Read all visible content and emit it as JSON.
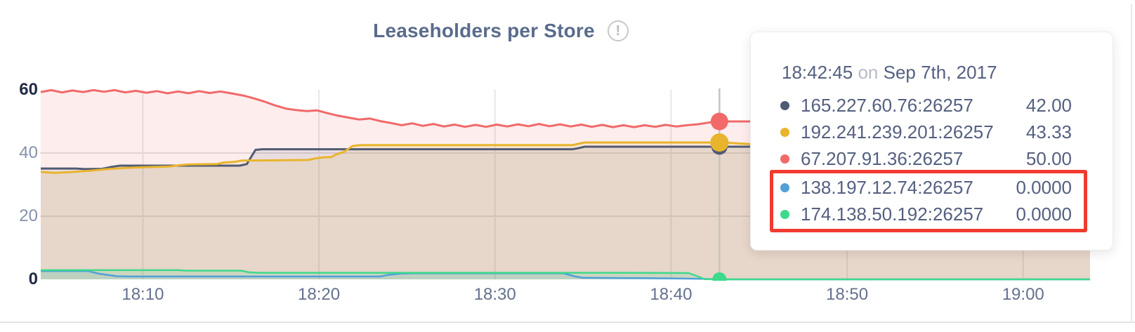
{
  "icons": {
    "info": "!"
  },
  "colors": {
    "title": "#5a6b8c",
    "highlight_box": "#f13b30",
    "hover_line": "#c4c4c4",
    "grid_horizontal": "#e2e2e2",
    "grid_vertical": "#e7e7e7",
    "tooltip_text": "#556080",
    "tooltip_conjunction_text": "#b7bcc5"
  },
  "chart_data": {
    "type": "area",
    "title": "Leaseholders per Store",
    "x_axis": {
      "unit": "minutes after 18:00 on Sep 7th, 2017",
      "range": [
        4.16,
        63.8
      ],
      "ticks": [
        {
          "m": 10,
          "label": "18:10"
        },
        {
          "m": 20,
          "label": "18:20"
        },
        {
          "m": 30,
          "label": "18:30"
        },
        {
          "m": 40,
          "label": "18:40"
        },
        {
          "m": 50,
          "label": "18:50"
        },
        {
          "m": 60,
          "label": "19:00"
        }
      ]
    },
    "y_axis": {
      "range": [
        0,
        60
      ],
      "ticks": [
        {
          "v": 0,
          "label": "0",
          "strong": true,
          "grid": false
        },
        {
          "v": 20,
          "label": "20",
          "strong": false,
          "grid": true
        },
        {
          "v": 40,
          "label": "40",
          "strong": false,
          "grid": true
        },
        {
          "v": 60,
          "label": "60",
          "strong": true,
          "grid": false
        }
      ]
    },
    "series": [
      {
        "name": "165.227.60.76:26257",
        "color": "#505b74",
        "points": [
          [
            4.2,
            35.1
          ],
          [
            6.2,
            35.1
          ],
          [
            6.7,
            34.9
          ],
          [
            7.7,
            35.0
          ],
          [
            8.2,
            35.6
          ],
          [
            8.7,
            36.0
          ],
          [
            15.5,
            36.0
          ],
          [
            15.9,
            36.5
          ],
          [
            16.4,
            41.0
          ],
          [
            16.8,
            41.2
          ],
          [
            34.4,
            41.2
          ],
          [
            34.7,
            41.5
          ],
          [
            35.1,
            42.0
          ],
          [
            42.75,
            42.0
          ],
          [
            63.8,
            42.0
          ]
        ]
      },
      {
        "name": "192.241.239.201:26257",
        "color": "#e8b42d",
        "points": [
          [
            4.2,
            34.0
          ],
          [
            5.0,
            33.7
          ],
          [
            6.0,
            34.0
          ],
          [
            7.0,
            34.4
          ],
          [
            8.0,
            34.9
          ],
          [
            9.0,
            35.3
          ],
          [
            10.0,
            35.5
          ],
          [
            11.5,
            35.7
          ],
          [
            12.0,
            36.1
          ],
          [
            12.6,
            36.4
          ],
          [
            14.2,
            36.5
          ],
          [
            14.6,
            37.0
          ],
          [
            15.2,
            37.2
          ],
          [
            15.6,
            37.6
          ],
          [
            18.0,
            37.7
          ],
          [
            19.4,
            37.8
          ],
          [
            19.8,
            38.3
          ],
          [
            20.2,
            38.6
          ],
          [
            20.7,
            38.7
          ],
          [
            21.0,
            39.6
          ],
          [
            21.4,
            40.3
          ],
          [
            21.9,
            42.2
          ],
          [
            22.3,
            42.5
          ],
          [
            34.4,
            42.5
          ],
          [
            34.8,
            43.0
          ],
          [
            35.1,
            43.33
          ],
          [
            42.75,
            43.33
          ],
          [
            43.4,
            43.2
          ],
          [
            44.5,
            42.8
          ],
          [
            45.8,
            42.65
          ],
          [
            63.8,
            42.65
          ]
        ]
      },
      {
        "name": "67.207.91.36:26257",
        "color": "#f16969",
        "points": [
          [
            4.2,
            59.3
          ],
          [
            4.8,
            59.9
          ],
          [
            5.4,
            59.2
          ],
          [
            6.0,
            59.8
          ],
          [
            6.6,
            59.3
          ],
          [
            7.2,
            59.9
          ],
          [
            7.8,
            59.4
          ],
          [
            8.4,
            59.9
          ],
          [
            9.0,
            59.2
          ],
          [
            9.6,
            59.7
          ],
          [
            10.2,
            59.1
          ],
          [
            10.8,
            59.6
          ],
          [
            11.4,
            58.9
          ],
          [
            12.0,
            59.5
          ],
          [
            12.6,
            58.9
          ],
          [
            13.2,
            59.6
          ],
          [
            13.8,
            59.0
          ],
          [
            14.4,
            59.5
          ],
          [
            15.0,
            58.9
          ],
          [
            15.7,
            58.2
          ],
          [
            16.3,
            57.3
          ],
          [
            16.9,
            56.3
          ],
          [
            17.5,
            55.1
          ],
          [
            18.1,
            54.1
          ],
          [
            18.7,
            53.6
          ],
          [
            19.3,
            53.3
          ],
          [
            19.9,
            53.5
          ],
          [
            20.5,
            52.6
          ],
          [
            21.1,
            51.8
          ],
          [
            21.7,
            51.2
          ],
          [
            22.3,
            50.6
          ],
          [
            22.9,
            50.9
          ],
          [
            23.5,
            50.1
          ],
          [
            24.1,
            49.5
          ],
          [
            24.7,
            48.8
          ],
          [
            25.3,
            49.4
          ],
          [
            25.9,
            48.6
          ],
          [
            26.5,
            49.2
          ],
          [
            27.1,
            48.4
          ],
          [
            27.7,
            49.0
          ],
          [
            28.3,
            48.3
          ],
          [
            28.9,
            48.9
          ],
          [
            29.5,
            48.3
          ],
          [
            30.1,
            49.0
          ],
          [
            30.7,
            48.4
          ],
          [
            31.3,
            49.1
          ],
          [
            31.9,
            48.5
          ],
          [
            32.5,
            49.2
          ],
          [
            33.1,
            48.5
          ],
          [
            33.7,
            49.1
          ],
          [
            34.3,
            48.4
          ],
          [
            34.9,
            49.0
          ],
          [
            35.5,
            48.3
          ],
          [
            36.1,
            48.9
          ],
          [
            36.7,
            48.2
          ],
          [
            37.3,
            48.8
          ],
          [
            37.9,
            48.2
          ],
          [
            38.5,
            48.8
          ],
          [
            39.1,
            48.3
          ],
          [
            39.7,
            48.9
          ],
          [
            40.3,
            48.4
          ],
          [
            40.9,
            48.8
          ],
          [
            41.5,
            49.1
          ],
          [
            42.1,
            49.6
          ],
          [
            42.5,
            50.0
          ],
          [
            44.0,
            50.0
          ],
          [
            48.0,
            50.0
          ],
          [
            54.0,
            50.0
          ],
          [
            63.8,
            50.0
          ]
        ]
      },
      {
        "name": "138.197.12.74:26257",
        "color": "#51a0d9",
        "points": [
          [
            4.2,
            2.6
          ],
          [
            6.9,
            2.6
          ],
          [
            7.5,
            1.8
          ],
          [
            8.5,
            1.0
          ],
          [
            9.2,
            0.9
          ],
          [
            23.5,
            0.9
          ],
          [
            23.9,
            1.4
          ],
          [
            24.6,
            1.8
          ],
          [
            25.4,
            1.9
          ],
          [
            33.9,
            1.9
          ],
          [
            34.5,
            1.0
          ],
          [
            35.0,
            0.5
          ],
          [
            38.5,
            0.4
          ],
          [
            41.5,
            0.2
          ],
          [
            42.75,
            0
          ],
          [
            63.8,
            0
          ]
        ]
      },
      {
        "name": "174.138.50.192:26257",
        "color": "#3ed98b",
        "points": [
          [
            4.2,
            2.9
          ],
          [
            12.0,
            2.9
          ],
          [
            12.5,
            2.75
          ],
          [
            15.6,
            2.75
          ],
          [
            16.0,
            2.25
          ],
          [
            16.6,
            2.1
          ],
          [
            38.0,
            2.1
          ],
          [
            38.6,
            2.05
          ],
          [
            41.0,
            2.0
          ],
          [
            41.5,
            1.0
          ],
          [
            41.9,
            0.05
          ],
          [
            42.75,
            0
          ],
          [
            63.8,
            0
          ]
        ]
      }
    ],
    "hover": {
      "m": 42.75,
      "time": "18:42:45",
      "date": "Sep 7th, 2017",
      "values": {
        "165.227.60.76:26257": 42,
        "192.241.239.201:26257": 43.33,
        "67.207.91.36:26257": 50,
        "138.197.12.74:26257": 0,
        "174.138.50.192:26257": 0
      }
    },
    "legend_position": "tooltip",
    "grid": true
  },
  "tooltip": {
    "time": "18:42:45",
    "conjunction": "on",
    "date": "Sep 7th, 2017",
    "rows": [
      {
        "series": "165.227.60.76:26257",
        "value": "42.00",
        "color": "#505b74",
        "highlighted": false
      },
      {
        "series": "192.241.239.201:26257",
        "value": "43.33",
        "color": "#e8b42d",
        "highlighted": false
      },
      {
        "series": "67.207.91.36:26257",
        "value": "50.00",
        "color": "#f16969",
        "highlighted": false
      },
      {
        "series": "138.197.12.74:26257",
        "value": "0.0000",
        "color": "#51a0d9",
        "highlighted": true
      },
      {
        "series": "174.138.50.192:26257",
        "value": "0.0000",
        "color": "#3ed98b",
        "highlighted": true
      }
    ]
  }
}
